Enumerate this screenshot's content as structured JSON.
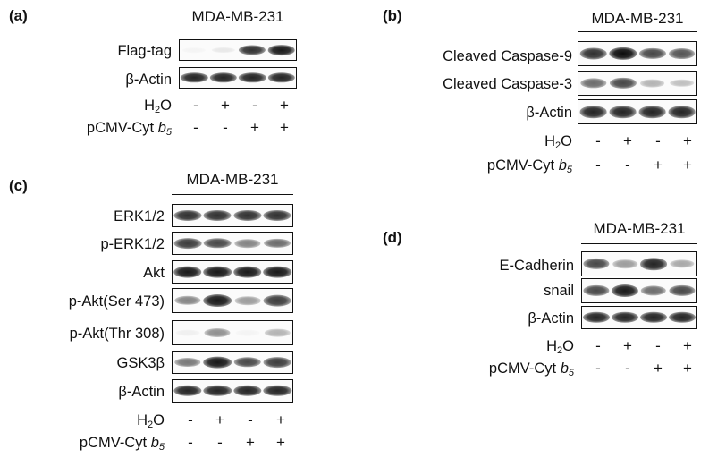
{
  "cell_line": "MDA-MB-231",
  "treatments": {
    "h2o2_base": "H",
    "h2o2_sub": "2",
    "h2o2_o": "O",
    "vector_prefix": "pCMV-Cyt ",
    "vector_b": "b",
    "vector_sub": "5",
    "h2o2_signs": [
      "-",
      "+",
      "-",
      "+"
    ],
    "vector_signs": [
      "-",
      "-",
      "+",
      "+"
    ]
  },
  "panels": {
    "a": {
      "letter": "(a)",
      "blots": [
        {
          "label": "Flag-tag",
          "intensity": [
            0.03,
            0.08,
            0.85,
            0.95
          ]
        },
        {
          "label": "β-Actin",
          "intensity": [
            0.9,
            0.9,
            0.9,
            0.9
          ]
        }
      ]
    },
    "b": {
      "letter": "(b)",
      "blots": [
        {
          "label": "Cleaved Caspase-9",
          "intensity": [
            0.85,
            1.0,
            0.75,
            0.7
          ]
        },
        {
          "label": "Cleaved Caspase-3",
          "intensity": [
            0.6,
            0.75,
            0.3,
            0.25
          ]
        },
        {
          "label": "β-Actin",
          "intensity": [
            0.9,
            0.9,
            0.9,
            0.9
          ]
        }
      ]
    },
    "c": {
      "letter": "(c)",
      "blots": [
        {
          "label": "ERK1/2",
          "intensity": [
            0.85,
            0.85,
            0.85,
            0.85
          ]
        },
        {
          "label": "p-ERK1/2",
          "intensity": [
            0.8,
            0.75,
            0.5,
            0.6
          ]
        },
        {
          "label": "Akt",
          "intensity": [
            0.95,
            0.95,
            0.95,
            0.95
          ]
        },
        {
          "label": "p-Akt(Ser 473)",
          "intensity": [
            0.5,
            0.95,
            0.4,
            0.8
          ]
        },
        {
          "label": "p-Akt(Thr 308)",
          "intensity": [
            0.05,
            0.45,
            0.03,
            0.3
          ]
        },
        {
          "label": "GSK3β",
          "intensity": [
            0.55,
            0.95,
            0.75,
            0.8
          ]
        },
        {
          "label": "β-Actin",
          "intensity": [
            0.9,
            0.9,
            0.9,
            0.9
          ]
        }
      ]
    },
    "d": {
      "letter": "(d)",
      "blots": [
        {
          "label": "E-Cadherin",
          "intensity": [
            0.75,
            0.4,
            0.9,
            0.35
          ]
        },
        {
          "label": "snail",
          "intensity": [
            0.75,
            0.95,
            0.6,
            0.75
          ]
        },
        {
          "label": "β-Actin",
          "intensity": [
            0.9,
            0.9,
            0.9,
            0.9
          ]
        }
      ]
    }
  }
}
